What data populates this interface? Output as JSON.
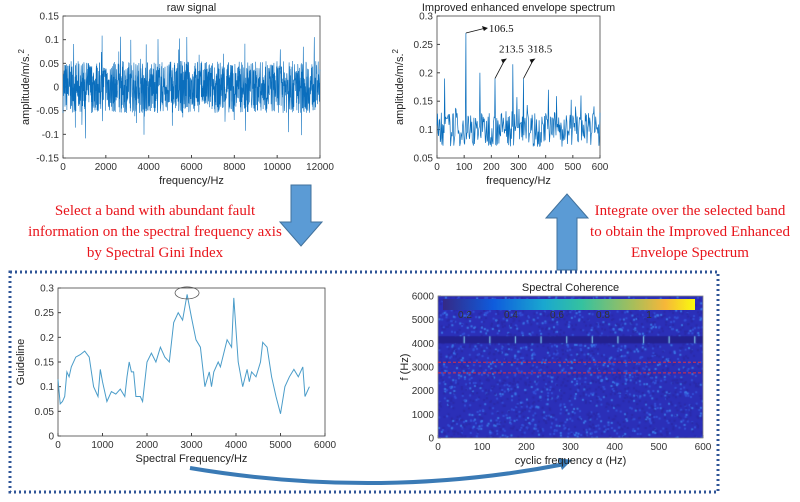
{
  "annotations": {
    "left": [
      "Select a band with abundant fault",
      "information on the spectral frequency axis",
      "by Spectral Gini Index"
    ],
    "right": [
      "Integrate over the selected band",
      "to obtain the Improved Enhanced",
      "Envelope Spectrum"
    ]
  },
  "colors": {
    "signal": "#0a6ebd",
    "guideline": "#4a9cc9",
    "arrow": "#5b9bd5",
    "text_red": "#e8141b",
    "box": "#2f5597"
  },
  "chart_data": [
    {
      "id": "raw",
      "type": "line",
      "title": "raw signal",
      "xlabel": "frequency/Hz",
      "ylabel": "amplitude/m/s.",
      "ylabel_sup": "2",
      "xlim": [
        0,
        12000
      ],
      "ylim": [
        -0.15,
        0.15
      ],
      "xticks": [
        "0",
        "2000",
        "4000",
        "6000",
        "8000",
        "10000",
        "12000"
      ],
      "yticks": [
        "-0.15",
        "-0.1",
        "-0.05",
        "0",
        "0.05",
        "0.1",
        "0.15"
      ],
      "description_level": {
        "typical_amplitude": 0.05,
        "max_amplitude": 0.11
      }
    },
    {
      "id": "envelope",
      "type": "line",
      "title": "Improved enhanced envelope spectrum",
      "xlabel": "frequency/Hz",
      "ylabel": "amplitude/m/s.",
      "ylabel_sup": "2",
      "xlim": [
        0,
        600
      ],
      "ylim": [
        0.05,
        0.3
      ],
      "xticks": [
        "0",
        "100",
        "200",
        "300",
        "400",
        "500",
        "600"
      ],
      "yticks": [
        "0.05",
        "0.1",
        "0.15",
        "0.2",
        "0.25",
        "0.3"
      ],
      "peaks": [
        [
          28,
          0.19
        ],
        [
          106.5,
          0.27
        ],
        [
          158,
          0.2
        ],
        [
          213.5,
          0.19
        ],
        [
          279,
          0.215
        ],
        [
          318.5,
          0.19
        ],
        [
          410,
          0.17
        ],
        [
          530,
          0.16
        ]
      ],
      "labels": [
        {
          "text": "106.5",
          "x": 106.5,
          "y": 0.27
        },
        {
          "text": "213.5",
          "x": 213.5,
          "y": 0.19
        },
        {
          "text": "318.5",
          "x": 318.5,
          "y": 0.19
        }
      ]
    },
    {
      "id": "guideline",
      "type": "line",
      "title": "",
      "xlabel": "Spectral Frequency/Hz",
      "ylabel": "Guideline",
      "xlim": [
        0,
        6000
      ],
      "ylim": [
        0,
        0.3
      ],
      "xticks": [
        "0",
        "1000",
        "2000",
        "3000",
        "4000",
        "5000",
        "6000"
      ],
      "yticks": [
        "0",
        "0.05",
        "0.1",
        "0.15",
        "0.2",
        "0.25",
        "0.3"
      ],
      "x": [
        0,
        50,
        100,
        150,
        200,
        250,
        300,
        400,
        500,
        600,
        700,
        800,
        900,
        950,
        1000,
        1100,
        1200,
        1300,
        1400,
        1500,
        1550,
        1600,
        1650,
        1700,
        1750,
        1850,
        1900,
        2000,
        2100,
        2200,
        2300,
        2400,
        2500,
        2600,
        2700,
        2800,
        2900,
        3000,
        3100,
        3200,
        3300,
        3400,
        3450,
        3500,
        3600,
        3650,
        3800,
        3900,
        3950,
        4050,
        4150,
        4250,
        4300,
        4350,
        4450,
        4550,
        4600,
        4700,
        4800,
        4900,
        5000,
        5100,
        5200,
        5300,
        5400,
        5500,
        5550,
        5650
      ],
      "y": [
        0.115,
        0.065,
        0.07,
        0.08,
        0.13,
        0.12,
        0.14,
        0.16,
        0.165,
        0.172,
        0.16,
        0.1,
        0.08,
        0.135,
        0.11,
        0.07,
        0.09,
        0.085,
        0.095,
        0.08,
        0.12,
        0.15,
        0.13,
        0.13,
        0.08,
        0.08,
        0.07,
        0.15,
        0.168,
        0.15,
        0.18,
        0.16,
        0.15,
        0.23,
        0.25,
        0.235,
        0.287,
        0.24,
        0.195,
        0.18,
        0.1,
        0.13,
        0.1,
        0.13,
        0.15,
        0.14,
        0.195,
        0.18,
        0.28,
        0.15,
        0.1,
        0.135,
        0.11,
        0.13,
        0.12,
        0.15,
        0.19,
        0.18,
        0.12,
        0.08,
        0.045,
        0.1,
        0.12,
        0.135,
        0.12,
        0.14,
        0.08,
        0.1
      ],
      "highlight_x": 2900
    },
    {
      "id": "coherence",
      "type": "heatmap",
      "title": "Spectral Coherence",
      "xlabel": "cyclic frequency α (Hz)",
      "ylabel": "f (Hz)",
      "xlim": [
        0,
        600
      ],
      "ylim": [
        0,
        6000
      ],
      "xticks": [
        "0",
        "100",
        "200",
        "300",
        "400",
        "500",
        "600"
      ],
      "yticks": [
        "0",
        "1000",
        "2000",
        "3000",
        "4000",
        "5000",
        "6000"
      ],
      "colorbar_ticks": [
        "0.2",
        "0.4",
        "0.6",
        "0.8",
        "1"
      ],
      "selected_band": [
        2750,
        3200
      ],
      "bright_band": [
        4000,
        4300
      ],
      "harmonic_spacing": 58
    }
  ]
}
